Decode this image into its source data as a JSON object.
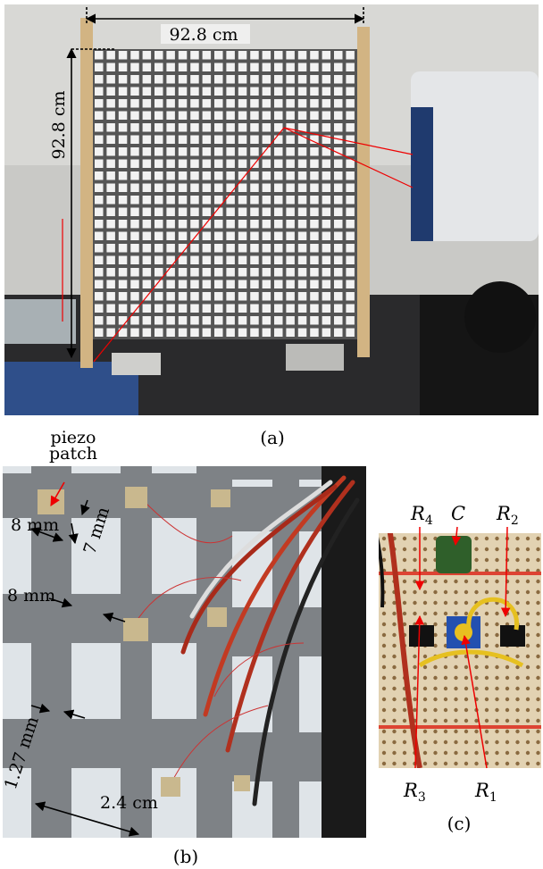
{
  "panel_a": {
    "label": "(a)",
    "width_dimension": "92.8 cm",
    "height_dimension": "92.8 cm"
  },
  "panel_b": {
    "label": "(b)",
    "piezo_label": [
      "piezo",
      "patch"
    ],
    "patch_width": "8 mm",
    "patch_height": "7 mm",
    "bar_width": "8 mm",
    "thickness": "1.27 mm",
    "cell_size": "2.4 cm"
  },
  "panel_c": {
    "label": "(c)",
    "components": [
      {
        "symbol": "R",
        "subscript": "4"
      },
      {
        "symbol": "C"
      },
      {
        "symbol": "R",
        "subscript": "2"
      },
      {
        "symbol": "R",
        "subscript": "3"
      },
      {
        "symbol": "R",
        "subscript": "1"
      }
    ]
  }
}
